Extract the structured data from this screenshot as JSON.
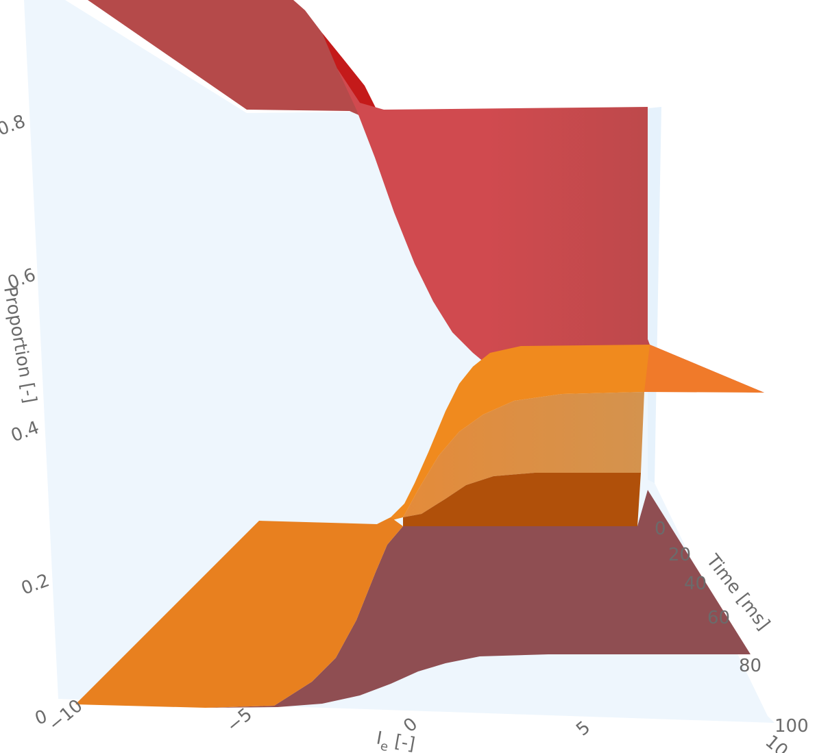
{
  "chart_data": {
    "type": "surface3d",
    "title": "",
    "colors": {
      "red_surface_front": "#d04a4f",
      "red_surface_back": "#b54a4a",
      "red_fold": "#c41a1a",
      "orange_surface_front": "#f08a1e",
      "orange_surface_mid": "#d6954f",
      "orange_bottom": "#e8801f",
      "dark_red_floor": "#8f4e52",
      "dark_orange_band": "#b0500a",
      "pane": "#eef6fd"
    },
    "axes": {
      "x": {
        "label_main": "I",
        "label_sub": "e",
        "label_suffix": " [-]",
        "range": [
          -10,
          10
        ],
        "ticks": [
          "−10",
          "−5",
          "0",
          "5",
          "10"
        ]
      },
      "y": {
        "label": "Time [ms]",
        "range": [
          0,
          100
        ],
        "ticks": [
          "0",
          "20",
          "40",
          "60",
          "80",
          "100"
        ]
      },
      "z": {
        "label": "Proportion [-]",
        "range": [
          0,
          1
        ],
        "ticks": [
          "0",
          "0.2",
          "0.4",
          "0.6",
          "0.8"
        ]
      }
    },
    "series": [
      {
        "name": "",
        "color": "#d04a4f",
        "profile_t0": {
          "x": [
            -10,
            -5,
            0,
            5,
            10
          ],
          "z": [
            0.93,
            0.88,
            0.62,
            0.5,
            0.5
          ]
        },
        "profile_t100": {
          "x": [
            -10,
            -5,
            0,
            5,
            10
          ],
          "z": [
            0.93,
            0.9,
            0.65,
            0.5,
            0.5
          ]
        }
      },
      {
        "name": "",
        "color": "#f08a1e",
        "profile_t0": {
          "x": [
            -10,
            -5,
            0,
            5,
            10
          ],
          "z": [
            0.07,
            0.12,
            0.38,
            0.5,
            0.5
          ]
        },
        "profile_t100": {
          "x": [
            -10,
            -5,
            0,
            5,
            10
          ],
          "z": [
            0.28,
            0.28,
            0.33,
            0.45,
            0.46
          ]
        }
      }
    ]
  }
}
